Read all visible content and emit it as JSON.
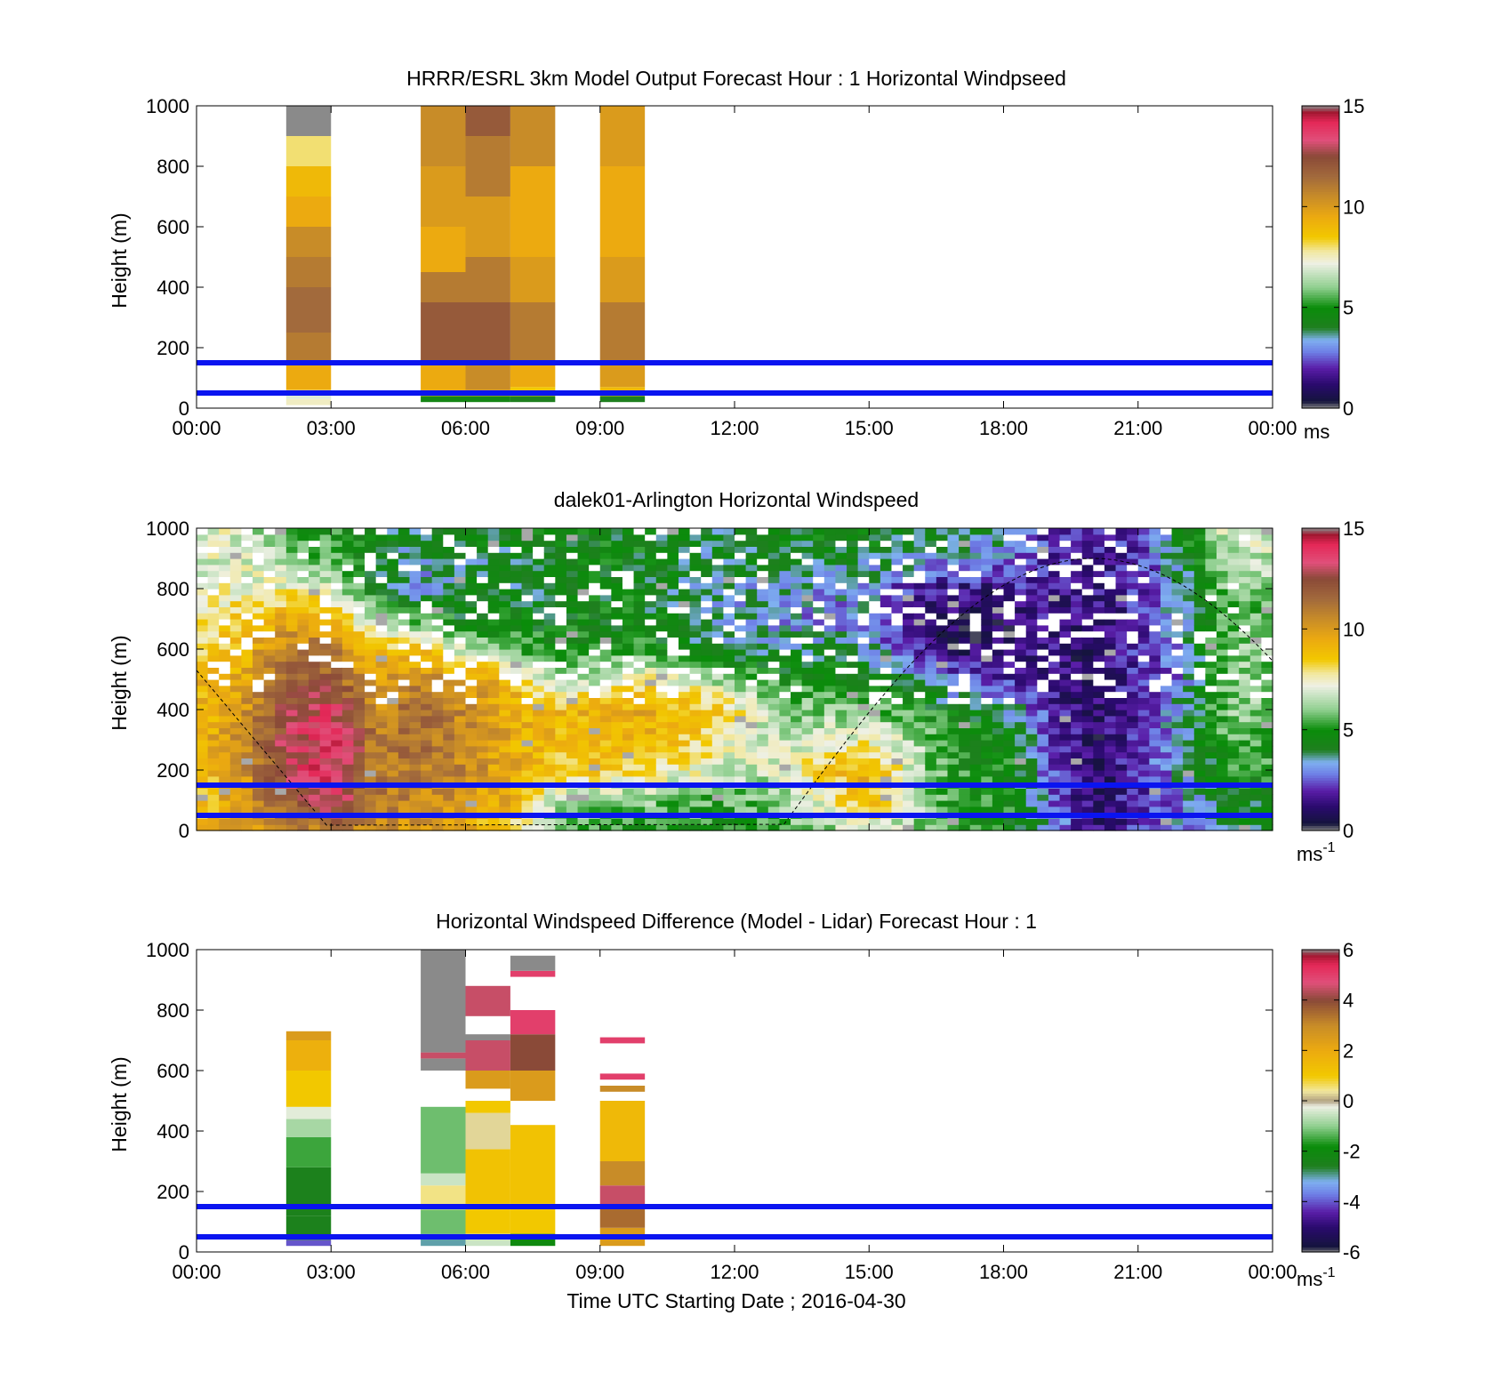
{
  "figure": {
    "xlabel": "Time UTC  Starting Date ; 2016-04-30"
  },
  "chart_data": [
    {
      "type": "heatmap",
      "title": "HRRR/ESRL 3km Model Output   Forecast Hour : 1 Horizontal Windpseed",
      "ylabel": "Height (m)",
      "xlabel": "",
      "x_ticks": [
        "00:00",
        "03:00",
        "06:00",
        "09:00",
        "12:00",
        "15:00",
        "18:00",
        "21:00",
        "00:00"
      ],
      "xlim_hours": [
        0,
        24
      ],
      "ylim": [
        0,
        1000
      ],
      "y_ticks": [
        0,
        200,
        400,
        600,
        800,
        1000
      ],
      "colorbar": {
        "min": 0,
        "max": 15,
        "ticks": [
          0,
          5,
          10,
          15
        ],
        "unit_label": "ms"
      },
      "reference_lines_m": [
        50,
        150
      ],
      "columns": [
        {
          "start_hour": 2.0,
          "end_hour": 3.0,
          "height_range": [
            10,
            1000
          ],
          "cells": [
            [
              10,
              30,
              7.5
            ],
            [
              30,
              60,
              7.0
            ],
            [
              60,
              150,
              9.5
            ],
            [
              150,
              250,
              11.0
            ],
            [
              250,
              400,
              11.5
            ],
            [
              400,
              500,
              11.0
            ],
            [
              500,
              600,
              10.5
            ],
            [
              600,
              700,
              9.5
            ],
            [
              700,
              800,
              9.0
            ],
            [
              800,
              900,
              8.0
            ],
            [
              900,
              1000,
              0.0
            ]
          ]
        },
        {
          "start_hour": 5.0,
          "end_hour": 6.0,
          "height_range": [
            20,
            1000
          ],
          "cells": [
            [
              20,
              40,
              4.5
            ],
            [
              40,
              60,
              9.5
            ],
            [
              60,
              150,
              9.5
            ],
            [
              150,
              350,
              12.0
            ],
            [
              350,
              450,
              11.0
            ],
            [
              450,
              600,
              9.5
            ],
            [
              600,
              800,
              10.0
            ],
            [
              800,
              1000,
              10.5
            ]
          ]
        },
        {
          "start_hour": 6.0,
          "end_hour": 7.0,
          "height_range": [
            20,
            1000
          ],
          "cells": [
            [
              20,
              40,
              4.5
            ],
            [
              40,
              60,
              9.5
            ],
            [
              60,
              150,
              10.5
            ],
            [
              150,
              350,
              12.0
            ],
            [
              350,
              500,
              11.0
            ],
            [
              500,
              700,
              10.0
            ],
            [
              700,
              900,
              11.0
            ],
            [
              900,
              1000,
              12.0
            ]
          ]
        },
        {
          "start_hour": 7.0,
          "end_hour": 8.0,
          "height_range": [
            20,
            1000
          ],
          "cells": [
            [
              20,
              40,
              4.0
            ],
            [
              40,
              70,
              8.5
            ],
            [
              70,
              150,
              9.5
            ],
            [
              150,
              350,
              11.0
            ],
            [
              350,
              500,
              10.0
            ],
            [
              500,
              800,
              9.5
            ],
            [
              800,
              1000,
              10.5
            ]
          ]
        },
        {
          "start_hour": 9.0,
          "end_hour": 10.0,
          "height_range": [
            20,
            1000
          ],
          "cells": [
            [
              20,
              40,
              4.0
            ],
            [
              40,
              70,
              9.0
            ],
            [
              70,
              150,
              10.0
            ],
            [
              150,
              350,
              11.0
            ],
            [
              350,
              500,
              10.0
            ],
            [
              500,
              800,
              9.5
            ],
            [
              800,
              1000,
              10.0
            ]
          ]
        }
      ]
    },
    {
      "type": "heatmap",
      "title": "dalek01-Arlington  Horizontal Windspeed",
      "ylabel": "Height (m)",
      "xlabel": "",
      "x_ticks": [
        "",
        "",
        "",
        "",
        "",
        "",
        "",
        "",
        ""
      ],
      "xlim_hours": [
        0,
        24
      ],
      "ylim": [
        0,
        1000
      ],
      "y_ticks": [
        0,
        200,
        400,
        600,
        800,
        1000
      ],
      "colorbar": {
        "min": 0,
        "max": 15,
        "ticks": [
          0,
          5,
          10,
          15
        ],
        "unit_label": "ms",
        "unit_sup": "-1"
      },
      "reference_lines_m": [
        50,
        150
      ],
      "wind_profile_hours": [
        0,
        1,
        2,
        3,
        4,
        5,
        6,
        7,
        8,
        9,
        10,
        11,
        12,
        13,
        14,
        15,
        16,
        17,
        18,
        19,
        20,
        21,
        22,
        23
      ],
      "wind_profile_heights_m": [
        0,
        100,
        200,
        300,
        400,
        500,
        600,
        700,
        800,
        900,
        1000
      ],
      "wind_profile_values": [
        [
          9.0,
          8.5,
          8.5,
          9.0,
          9.0,
          9.0,
          8.5,
          7.5,
          7.0,
          7.0,
          7.0
        ],
        [
          10.0,
          10.0,
          10.0,
          10.5,
          10.0,
          9.5,
          9.0,
          8.5,
          7.5,
          7.0,
          7.0
        ],
        [
          10.5,
          12.0,
          13.0,
          13.0,
          12.5,
          12.0,
          11.0,
          9.5,
          7.5,
          6.0,
          5.5
        ],
        [
          11.0,
          13.5,
          14.0,
          14.0,
          13.5,
          12.0,
          11.0,
          9.5,
          7.0,
          5.5,
          5.0
        ],
        [
          10.5,
          11.0,
          11.0,
          11.0,
          10.5,
          10.0,
          8.5,
          6.0,
          4.5,
          4.5,
          4.5
        ],
        [
          10.0,
          10.5,
          11.0,
          11.5,
          11.5,
          10.5,
          9.0,
          5.5,
          3.0,
          3.5,
          4.0
        ],
        [
          9.5,
          10.0,
          10.5,
          10.5,
          10.5,
          10.0,
          6.5,
          4.5,
          4.0,
          4.0,
          4.5
        ],
        [
          8.0,
          9.5,
          9.5,
          9.5,
          9.5,
          9.0,
          5.5,
          4.5,
          4.0,
          4.0,
          4.5
        ],
        [
          5.5,
          6.5,
          8.5,
          9.0,
          9.0,
          6.5,
          5.0,
          4.5,
          4.5,
          4.5,
          4.5
        ],
        [
          5.5,
          6.0,
          8.5,
          9.0,
          9.5,
          6.5,
          5.0,
          4.5,
          4.5,
          4.5,
          4.5
        ],
        [
          5.0,
          6.0,
          8.0,
          9.0,
          9.5,
          8.0,
          5.0,
          4.5,
          4.5,
          4.5,
          4.5
        ],
        [
          5.0,
          5.5,
          7.5,
          8.5,
          9.0,
          7.0,
          4.5,
          4.0,
          4.0,
          4.0,
          4.0
        ],
        [
          5.0,
          5.5,
          6.5,
          7.5,
          8.0,
          6.0,
          4.0,
          3.5,
          3.5,
          4.0,
          4.0
        ],
        [
          5.5,
          6.0,
          7.0,
          6.5,
          6.0,
          5.0,
          4.0,
          3.0,
          3.5,
          4.5,
          4.5
        ],
        [
          6.0,
          7.5,
          8.5,
          7.0,
          6.0,
          5.0,
          4.0,
          3.0,
          3.0,
          4.0,
          4.5
        ],
        [
          7.0,
          9.0,
          9.5,
          7.5,
          6.0,
          4.5,
          3.5,
          3.0,
          3.0,
          4.0,
          4.5
        ],
        [
          6.0,
          6.5,
          6.5,
          6.5,
          5.0,
          4.0,
          2.0,
          1.5,
          2.0,
          3.5,
          4.5
        ],
        [
          5.0,
          5.0,
          5.0,
          5.0,
          4.5,
          2.5,
          1.0,
          0.8,
          1.5,
          3.0,
          4.5
        ],
        [
          5.0,
          5.0,
          5.0,
          5.0,
          4.0,
          2.0,
          1.0,
          1.0,
          1.5,
          3.0,
          4.0
        ],
        [
          3.5,
          3.0,
          2.5,
          2.5,
          2.0,
          1.5,
          1.5,
          1.5,
          2.0,
          2.0,
          2.0
        ],
        [
          1.5,
          1.0,
          1.0,
          1.0,
          1.0,
          1.0,
          1.0,
          1.0,
          1.5,
          1.5,
          2.0
        ],
        [
          2.0,
          2.0,
          2.0,
          2.0,
          2.0,
          2.0,
          2.0,
          2.0,
          2.0,
          2.0,
          2.0
        ],
        [
          3.0,
          3.0,
          3.5,
          3.5,
          3.5,
          3.0,
          3.0,
          3.5,
          3.5,
          4.0,
          4.5
        ],
        [
          4.0,
          4.5,
          5.0,
          5.5,
          6.0,
          6.0,
          6.0,
          5.5,
          6.0,
          6.5,
          7.0
        ]
      ]
    },
    {
      "type": "heatmap",
      "title": "Horizontal Windspeed Difference (Model - Lidar) Forecast Hour : 1",
      "ylabel": "Height (m)",
      "xlabel": "Time UTC  Starting Date ; 2016-04-30",
      "x_ticks": [
        "00:00",
        "03:00",
        "06:00",
        "09:00",
        "12:00",
        "15:00",
        "18:00",
        "21:00",
        "00:00"
      ],
      "xlim_hours": [
        0,
        24
      ],
      "ylim": [
        0,
        1000
      ],
      "y_ticks": [
        0,
        200,
        400,
        600,
        800,
        1000
      ],
      "colorbar": {
        "min": -6,
        "max": 6,
        "ticks": [
          -6,
          -4,
          -2,
          0,
          2,
          4,
          6
        ],
        "unit_label": "ms",
        "unit_sup": "-1"
      },
      "reference_lines_m": [
        50,
        150
      ],
      "columns": [
        {
          "start_hour": 2.0,
          "end_hour": 3.0,
          "height_range": [
            20,
            730
          ],
          "cells": [
            [
              20,
              40,
              -4.0
            ],
            [
              40,
              120,
              -2.5
            ],
            [
              120,
              280,
              -2.5
            ],
            [
              280,
              380,
              -1.5
            ],
            [
              380,
              440,
              -0.8
            ],
            [
              440,
              480,
              -0.3
            ],
            [
              480,
              600,
              1.0
            ],
            [
              600,
              700,
              1.8
            ],
            [
              700,
              730,
              2.5
            ]
          ]
        },
        {
          "start_hour": 5.0,
          "end_hour": 6.0,
          "height_range": [
            20,
            1000
          ],
          "cells": [
            [
              20,
              60,
              -3.0
            ],
            [
              60,
              140,
              -1.2
            ],
            [
              140,
              220,
              0.5
            ],
            [
              220,
              260,
              -0.5
            ],
            [
              260,
              480,
              -1.2
            ],
            [
              600,
              640,
              6.0
            ],
            [
              640,
              660,
              4.5
            ],
            [
              660,
              1000,
              6.0
            ]
          ]
        },
        {
          "start_hour": 6.0,
          "end_hour": 7.0,
          "height_range": [
            20,
            960
          ],
          "cells": [
            [
              20,
              60,
              -0.5
            ],
            [
              60,
              160,
              1.0
            ],
            [
              160,
              340,
              1.2
            ],
            [
              340,
              460,
              0.3
            ],
            [
              460,
              500,
              1.0
            ],
            [
              540,
              600,
              2.5
            ],
            [
              600,
              700,
              4.5
            ],
            [
              700,
              720,
              6.0
            ],
            [
              780,
              880,
              4.5
            ]
          ]
        },
        {
          "start_hour": 7.0,
          "end_hour": 8.0,
          "height_range": [
            20,
            980
          ],
          "cells": [
            [
              20,
              60,
              -2.0
            ],
            [
              60,
              160,
              1.0
            ],
            [
              160,
              420,
              1.2
            ],
            [
              500,
              600,
              2.5
            ],
            [
              600,
              720,
              4.0
            ],
            [
              720,
              800,
              5.0
            ],
            [
              910,
              930,
              5.0
            ],
            [
              930,
              980,
              6.0
            ]
          ]
        },
        {
          "start_hour": 9.0,
          "end_hour": 10.0,
          "height_range": [
            20,
            700
          ],
          "cells": [
            [
              20,
              80,
              2.5
            ],
            [
              80,
              150,
              3.5
            ],
            [
              150,
              220,
              4.5
            ],
            [
              220,
              300,
              3.0
            ],
            [
              300,
              500,
              1.5
            ],
            [
              530,
              550,
              3.0
            ],
            [
              570,
              590,
              5.0
            ],
            [
              690,
              710,
              5.0
            ]
          ]
        }
      ]
    }
  ]
}
